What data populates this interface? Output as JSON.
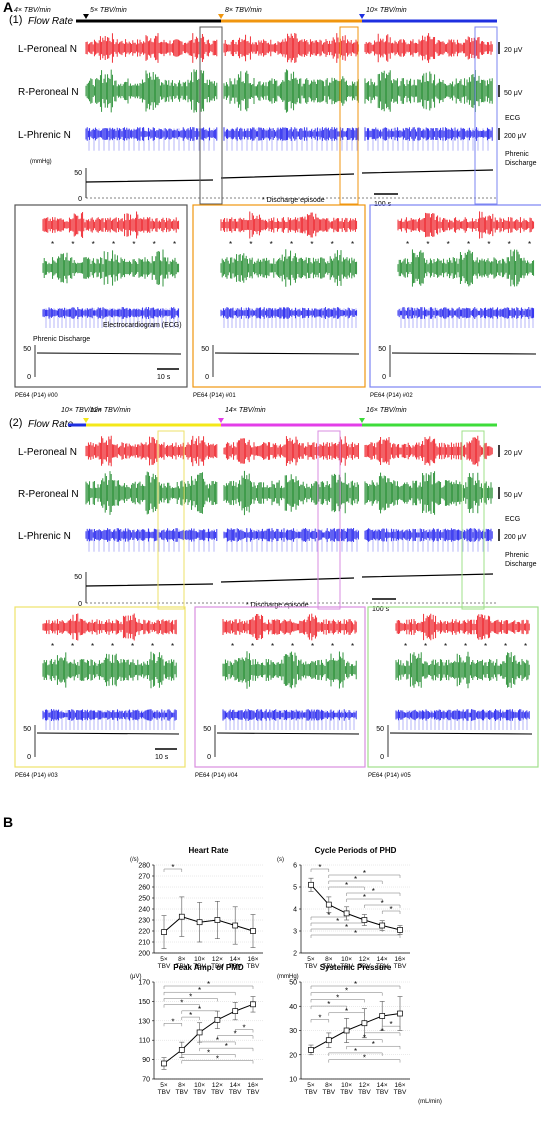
{
  "panel_a": {
    "label": "A",
    "top": {
      "label": "(1)",
      "flow_rate_label": "Flow Rate",
      "init_rate": "4× TBV/min",
      "rates": [
        "5× TBV/min",
        "8× TBV/min",
        "10× TBV/min"
      ],
      "rate_colors": [
        "#000000",
        "#f0960f",
        "#1e2fe0"
      ],
      "channels": [
        {
          "name": "L-Peroneal N",
          "scale": "20 μV",
          "color": "#ee1c24"
        },
        {
          "name": "R-Peroneal N",
          "scale": "50 μV",
          "color": "#1f8a2c"
        },
        {
          "name": "L-Phrenic N",
          "scale": "200 μV",
          "color": "#2222ee"
        }
      ],
      "ecg_label": "ECG",
      "phrenic_label": "Phrenic\nDischarge",
      "pressure_unit": "(mmHg)",
      "pressure_ticks": [
        "50",
        "0"
      ],
      "discharge_note": "* Discharge episode",
      "time_bar": "100 s",
      "zooms": [
        {
          "caption": "PE64 (P14) #00",
          "frame_color": "#555555",
          "time_bar": "10 s"
        },
        {
          "caption": "PE64 (P14) #01",
          "frame_color": "#f0960f",
          "time_bar": ""
        },
        {
          "caption": "PE64 (P14) #02",
          "frame_color": "#7b84f2",
          "time_bar": ""
        }
      ],
      "zoom_annotations": {
        "phrenic": "Phrenic Discharge",
        "ecg": "Electrocardiogram (ECG)"
      }
    },
    "bottom": {
      "label": "(2)",
      "flow_rate_label": "Flow Rate",
      "init_rate": "10× TBV/min",
      "rates": [
        "12× TBV/min",
        "14× TBV/min",
        "16× TBV/min"
      ],
      "rate_colors": [
        "#f4e81a",
        "#e33ee8",
        "#3edc3a"
      ],
      "channels": [
        {
          "name": "L-Peroneal N",
          "scale": "20 μV",
          "color": "#ee1c24"
        },
        {
          "name": "R-Peroneal N",
          "scale": "50 μV",
          "color": "#1f8a2c"
        },
        {
          "name": "L-Phrenic N",
          "scale": "200 μV",
          "color": "#2222ee"
        }
      ],
      "ecg_label": "ECG",
      "phrenic_label": "Phrenic\nDischarge",
      "pressure_ticks": [
        "50",
        "0"
      ],
      "discharge_note": "* Discharge episode",
      "time_bar": "100 s",
      "zooms": [
        {
          "caption": "PE64 (P14) #03",
          "frame_color": "#eee26a",
          "time_bar": "10 s"
        },
        {
          "caption": "PE64 (P14) #04",
          "frame_color": "#d98ee0",
          "time_bar": ""
        },
        {
          "caption": "PE64 (P14) #05",
          "frame_color": "#9fe08a",
          "time_bar": ""
        }
      ]
    }
  },
  "panel_b": {
    "label": "B"
  },
  "chart_data": [
    {
      "type": "line",
      "title": "Heart Rate",
      "ylabel": "(/s)",
      "xlabel": "",
      "categories": [
        "5× TBV",
        "8× TBV",
        "10× TBV",
        "12× TBV",
        "14× TBV",
        "16× TBV"
      ],
      "ylim": [
        200,
        280
      ],
      "yticks": [
        200,
        210,
        220,
        230,
        240,
        250,
        260,
        270,
        280
      ],
      "values": [
        219,
        233,
        228,
        230,
        225,
        220
      ],
      "errors": [
        15,
        18,
        18,
        17,
        17,
        15
      ],
      "significance": [
        [
          0,
          1
        ]
      ]
    },
    {
      "type": "line",
      "title": "Cycle Periods of PHD",
      "ylabel": "(s)",
      "xlabel": "",
      "categories": [
        "5× TBV",
        "8× TBV",
        "10× TBV",
        "12× TBV",
        "14× TBV",
        "16× TBV"
      ],
      "ylim": [
        2,
        6
      ],
      "yticks": [
        2,
        3,
        4,
        5,
        6
      ],
      "values": [
        5.1,
        4.2,
        3.8,
        3.5,
        3.25,
        3.05
      ],
      "errors": [
        0.3,
        0.35,
        0.3,
        0.25,
        0.22,
        0.2
      ],
      "significance": [
        [
          0,
          1
        ],
        [
          1,
          5
        ],
        [
          1,
          4
        ],
        [
          1,
          3
        ],
        [
          2,
          5
        ],
        [
          2,
          4
        ],
        [
          3,
          5
        ],
        [
          4,
          5
        ],
        [
          0,
          2
        ],
        [
          0,
          3
        ],
        [
          0,
          4
        ],
        [
          0,
          5
        ]
      ]
    },
    {
      "type": "line",
      "title": "Peak Amp. of PMD",
      "ylabel": "(μV)",
      "xlabel": "",
      "categories": [
        "5× TBV",
        "8× TBV",
        "10× TBV",
        "12× TBV",
        "14× TBV",
        "16× TBV"
      ],
      "ylim": [
        70,
        170
      ],
      "yticks": [
        70,
        90,
        110,
        130,
        150,
        170
      ],
      "values": [
        86,
        100,
        118,
        131,
        140,
        147
      ],
      "errors": [
        6,
        8,
        10,
        9,
        9,
        8
      ],
      "significance": [
        [
          0,
          5
        ],
        [
          0,
          4
        ],
        [
          0,
          3
        ],
        [
          0,
          2
        ],
        [
          1,
          3
        ],
        [
          1,
          2
        ],
        [
          0,
          1
        ],
        [
          4,
          5
        ],
        [
          3,
          5
        ],
        [
          2,
          4
        ],
        [
          2,
          5
        ],
        [
          1,
          4
        ],
        [
          1,
          5
        ]
      ]
    },
    {
      "type": "line",
      "title": "Systemic Pressure",
      "ylabel": "(mmHg)",
      "xlabel": "(mL/min)",
      "categories": [
        "5× TBV",
        "8× TBV",
        "10× TBV",
        "12× TBV",
        "14× TBV",
        "16× TBV"
      ],
      "ylim": [
        10,
        50
      ],
      "yticks": [
        10,
        20,
        30,
        40,
        50
      ],
      "values": [
        22,
        26,
        30,
        33,
        36,
        37
      ],
      "errors": [
        2,
        3,
        5,
        6,
        6,
        7
      ],
      "significance": [
        [
          0,
          5
        ],
        [
          0,
          4
        ],
        [
          0,
          3
        ],
        [
          0,
          2
        ],
        [
          1,
          3
        ],
        [
          0,
          1
        ],
        [
          4,
          5
        ],
        [
          3,
          5
        ],
        [
          2,
          4
        ],
        [
          2,
          5
        ],
        [
          1,
          4
        ],
        [
          1,
          5
        ]
      ]
    }
  ]
}
